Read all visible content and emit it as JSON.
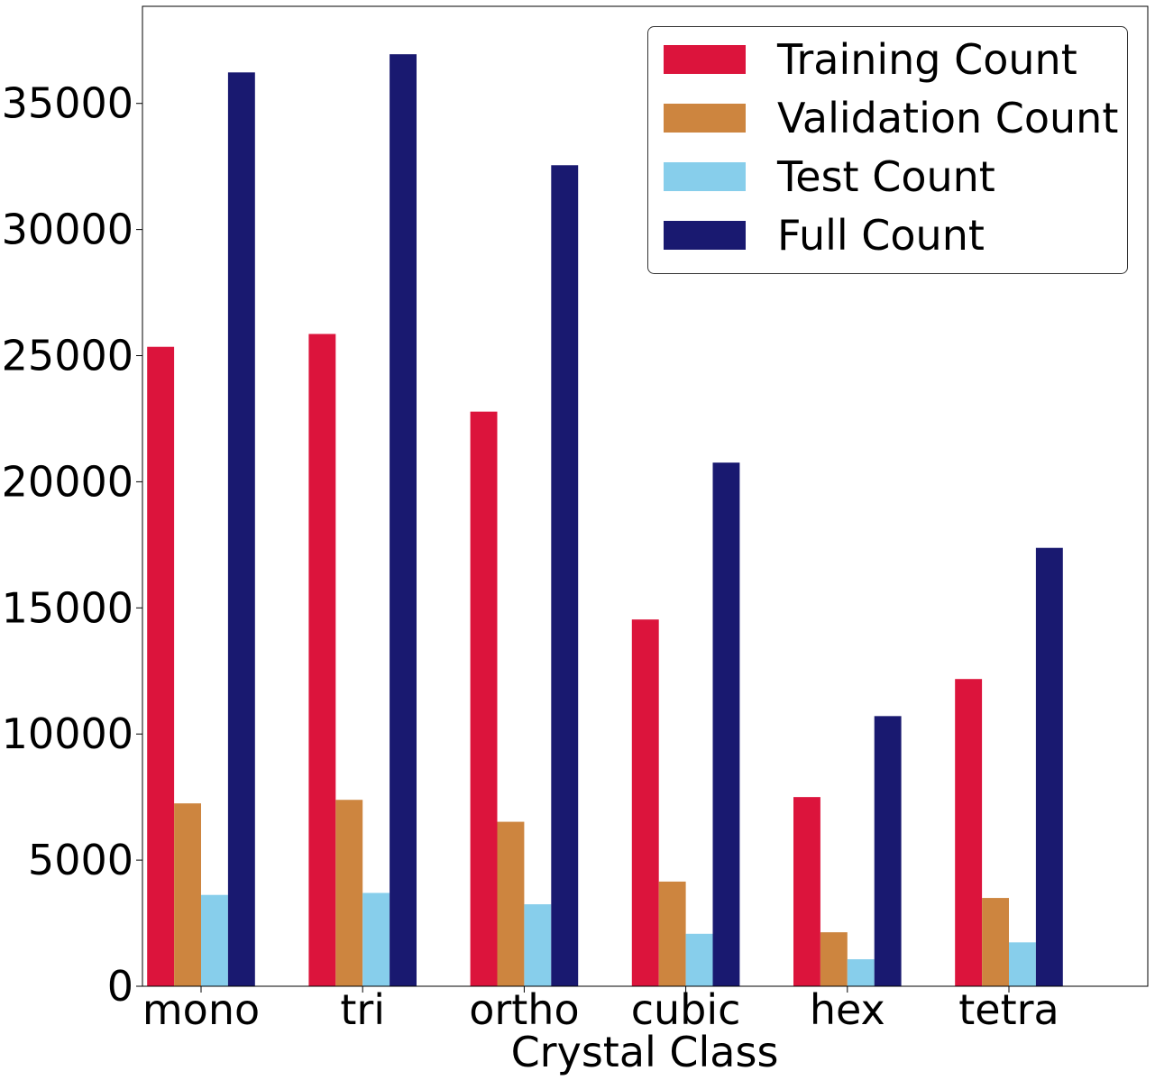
{
  "chart_data": {
    "type": "bar",
    "xlabel": "Crystal Class",
    "ylabel": "",
    "categories": [
      "mono",
      "tri",
      "ortho",
      "cubic",
      "hex",
      "tetra"
    ],
    "series": [
      {
        "name": "Training Count",
        "color": "#dc143c",
        "values": [
          25350,
          25860,
          22780,
          14540,
          7500,
          12180
        ]
      },
      {
        "name": "Validation Count",
        "color": "#cd853f",
        "values": [
          7250,
          7390,
          6520,
          4150,
          2140,
          3500
        ]
      },
      {
        "name": "Test Count",
        "color": "#87ceeb",
        "values": [
          3620,
          3700,
          3250,
          2080,
          1070,
          1740
        ]
      },
      {
        "name": "Full Count",
        "color": "#191970",
        "values": [
          36230,
          36950,
          32550,
          20760,
          10710,
          17380
        ]
      }
    ],
    "ylim": [
      0,
      38850
    ],
    "yticks": [
      0,
      5000,
      10000,
      15000,
      20000,
      25000,
      30000,
      35000
    ],
    "ytick_labels": [
      "0",
      "5000",
      "10000",
      "15000",
      "20000",
      "25000",
      "30000",
      "35000"
    ],
    "grid": false,
    "legend_position": "top-right"
  }
}
